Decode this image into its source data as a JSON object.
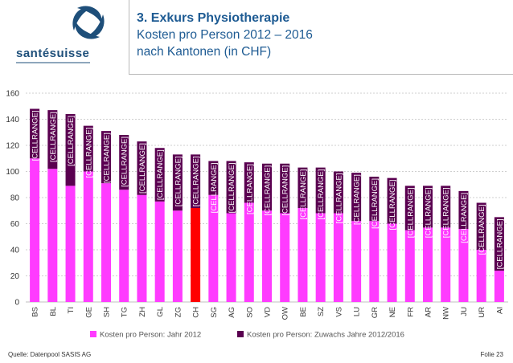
{
  "header": {
    "brand": "santésuisse",
    "title": "3. Exkurs Physiotherapie",
    "subtitle_line1": "Kosten pro Person 2012 – 2016",
    "subtitle_line2": "nach Kantonen (in CHF)"
  },
  "footer": {
    "source": "Quelle: Datenpool SASIS AG",
    "slide": "Folie 23"
  },
  "colors": {
    "base": "#ff3bff",
    "base_highlight": "#ff0000",
    "growth": "#5a0050",
    "title": "#1e5b93",
    "logo_blue": "#1e4f7a"
  },
  "chart_data": {
    "type": "bar",
    "stacked": true,
    "categories": [
      "BS",
      "BL",
      "TI",
      "GE",
      "SH",
      "TG",
      "ZH",
      "GL",
      "ZG",
      "CH",
      "SG",
      "AG",
      "SO",
      "VD",
      "OW",
      "BE",
      "SZ",
      "VS",
      "LU",
      "GR",
      "NE",
      "FR",
      "AR",
      "NW",
      "JU",
      "UR",
      "AI"
    ],
    "series": [
      {
        "name": "Kosten pro Person: Jahr 2012",
        "values": [
          110,
          102,
          89,
          100,
          91,
          86,
          82,
          77,
          70,
          72,
          82,
          68,
          76,
          70,
          68,
          72,
          68,
          68,
          62,
          62,
          60,
          55,
          57,
          57,
          56,
          40,
          24
        ]
      },
      {
        "name": "Kosten pro Person: Zuwachs Jahre 2012/2016",
        "values": [
          38,
          45,
          55,
          35,
          40,
          42,
          41,
          41,
          43,
          41,
          26,
          40,
          31,
          36,
          38,
          31,
          35,
          32,
          37,
          34,
          35,
          34,
          32,
          32,
          29,
          36,
          41
        ]
      }
    ],
    "data_label": "[CELLRANGE]",
    "highlight_category": "CH",
    "ylim": [
      0,
      160
    ],
    "yticks": [
      0,
      20,
      40,
      60,
      80,
      100,
      120,
      140,
      160
    ],
    "grid": true,
    "legend_position": "bottom"
  }
}
